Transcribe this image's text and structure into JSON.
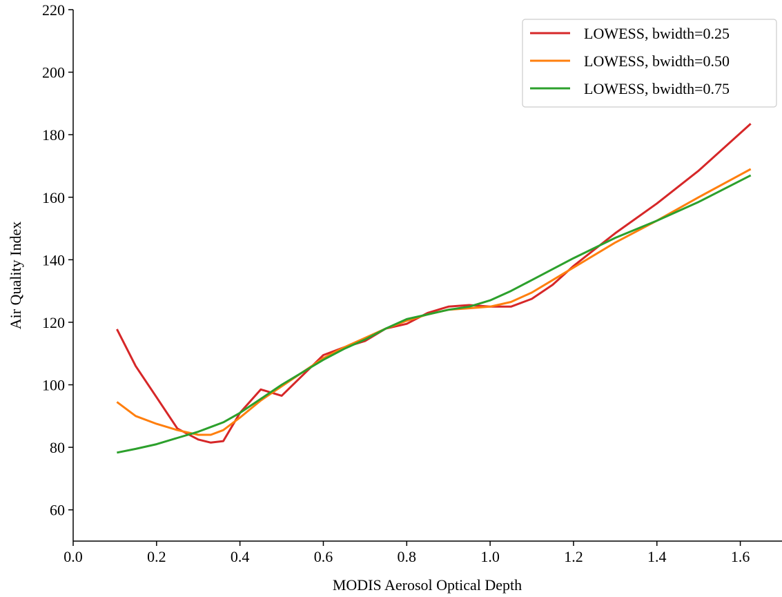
{
  "chart_data": {
    "type": "line",
    "x_label": "MODIS Aerosol Optical Depth",
    "y_label": "Air Quality Index",
    "x": [
      0.105,
      0.15,
      0.2,
      0.25,
      0.3,
      0.33,
      0.36,
      0.4,
      0.45,
      0.5,
      0.55,
      0.6,
      0.65,
      0.7,
      0.75,
      0.8,
      0.85,
      0.9,
      0.95,
      1.0,
      1.05,
      1.1,
      1.15,
      1.2,
      1.3,
      1.4,
      1.5,
      1.625
    ],
    "series": [
      {
        "name": "LOWESS, bwidth=0.25",
        "color": "#d62728",
        "values": [
          117.8,
          106,
          96,
          86,
          82.5,
          81.5,
          82,
          91,
          98.5,
          96.5,
          103,
          109.5,
          112,
          114,
          118,
          119.5,
          123,
          125,
          125.5,
          125,
          125,
          127.5,
          132,
          138,
          148.5,
          158,
          168.5,
          183.5
        ]
      },
      {
        "name": "LOWESS, bwidth=0.50",
        "color": "#ff7f0e",
        "values": [
          94.5,
          90,
          87.5,
          85.5,
          84,
          84,
          85.5,
          89.5,
          95,
          99.5,
          104,
          108.5,
          112,
          115,
          118,
          120.5,
          122.5,
          124,
          124.5,
          125,
          126.5,
          129.5,
          133.5,
          137.5,
          145.5,
          152.5,
          160,
          169
        ]
      },
      {
        "name": "LOWESS, bwidth=0.75",
        "color": "#2ca02c",
        "values": [
          78.3,
          79.5,
          81,
          83,
          85,
          86.5,
          88,
          91,
          95.5,
          100,
          104,
          108,
          111.5,
          114.5,
          118,
          121,
          122.5,
          124,
          125,
          127,
          130,
          133.5,
          137,
          140.5,
          147,
          152.5,
          158.5,
          167
        ]
      }
    ],
    "xlim": [
      0,
      1.7
    ],
    "ylim": [
      50,
      220
    ],
    "xticks": [
      {
        "value": 0,
        "label": "0.0"
      },
      0.2,
      0.4,
      0.6,
      0.8,
      {
        "value": 1,
        "label": "1.0"
      },
      1.2,
      1.4,
      1.6
    ],
    "yticks": [
      60,
      80,
      100,
      120,
      140,
      160,
      180,
      200,
      220
    ],
    "legend": "upper right"
  }
}
